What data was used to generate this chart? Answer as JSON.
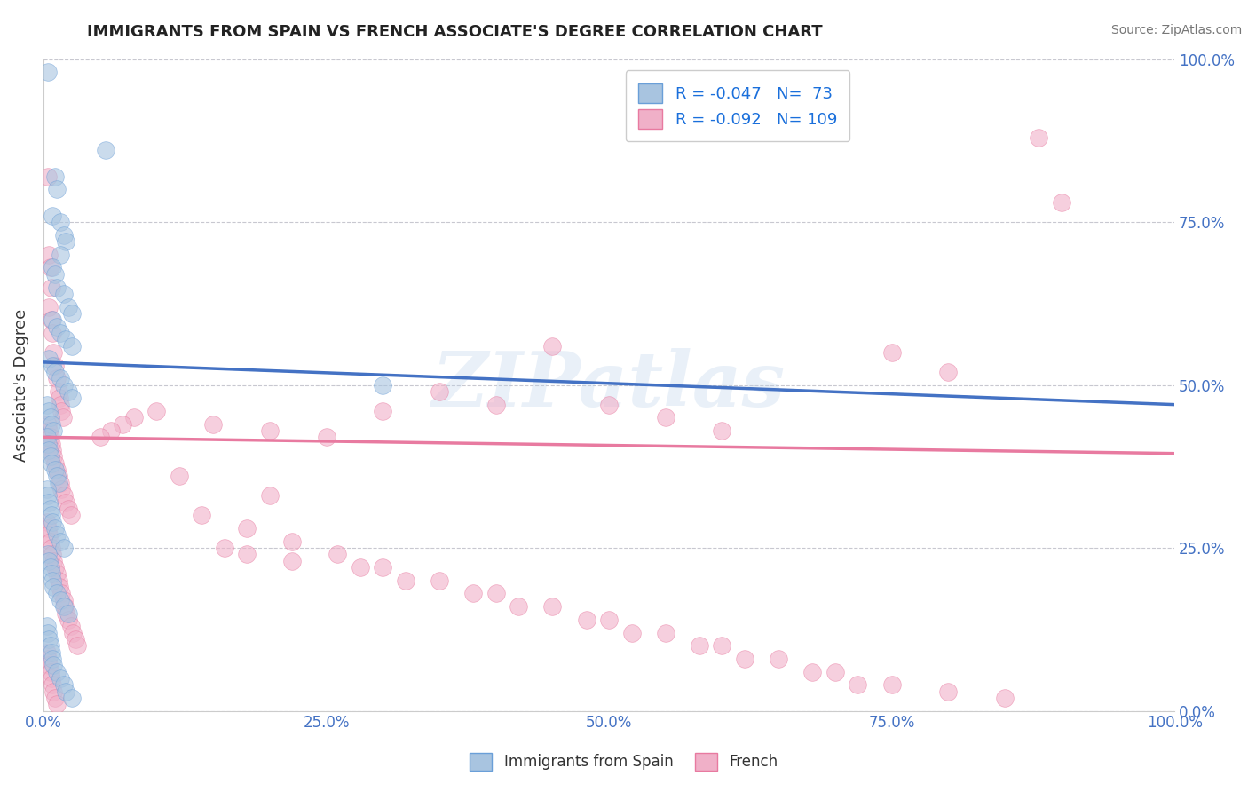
{
  "title": "IMMIGRANTS FROM SPAIN VS FRENCH ASSOCIATE'S DEGREE CORRELATION CHART",
  "source": "Source: ZipAtlas.com",
  "ylabel": "Associate's Degree",
  "watermark": "ZIPatlas",
  "blue_label": "Immigrants from Spain",
  "pink_label": "French",
  "blue_R": -0.047,
  "blue_N": 73,
  "pink_R": -0.092,
  "pink_N": 109,
  "xlim": [
    0.0,
    1.0
  ],
  "ylim": [
    0.0,
    1.0
  ],
  "xticks": [
    0.0,
    0.25,
    0.5,
    0.75,
    1.0
  ],
  "yticks": [
    0.0,
    0.25,
    0.5,
    0.75,
    1.0
  ],
  "xticklabels": [
    "0.0%",
    "25.0%",
    "50.0%",
    "75.0%",
    "100.0%"
  ],
  "yticklabels": [
    "0.0%",
    "25.0%",
    "50.0%",
    "75.0%",
    "100.0%"
  ],
  "blue_color": "#a8c4e0",
  "pink_color": "#f0b0c8",
  "blue_edge_color": "#6a9fd8",
  "pink_edge_color": "#e87aa0",
  "blue_line_color": "#4472c4",
  "pink_line_color": "#e87aa0",
  "blue_scatter_x": [
    0.004,
    0.055,
    0.01,
    0.012,
    0.008,
    0.015,
    0.018,
    0.02,
    0.015,
    0.008,
    0.01,
    0.012,
    0.018,
    0.022,
    0.025,
    0.008,
    0.012,
    0.015,
    0.02,
    0.025,
    0.005,
    0.008,
    0.01,
    0.015,
    0.018,
    0.022,
    0.025,
    0.003,
    0.005,
    0.006,
    0.007,
    0.009,
    0.003,
    0.004,
    0.005,
    0.006,
    0.007,
    0.01,
    0.012,
    0.013,
    0.003,
    0.004,
    0.005,
    0.006,
    0.007,
    0.008,
    0.01,
    0.012,
    0.015,
    0.018,
    0.004,
    0.005,
    0.006,
    0.007,
    0.008,
    0.009,
    0.012,
    0.015,
    0.018,
    0.022,
    0.003,
    0.004,
    0.005,
    0.006,
    0.007,
    0.008,
    0.009,
    0.012,
    0.015,
    0.018,
    0.02,
    0.025,
    0.3
  ],
  "blue_scatter_y": [
    0.98,
    0.86,
    0.82,
    0.8,
    0.76,
    0.75,
    0.73,
    0.72,
    0.7,
    0.68,
    0.67,
    0.65,
    0.64,
    0.62,
    0.61,
    0.6,
    0.59,
    0.58,
    0.57,
    0.56,
    0.54,
    0.53,
    0.52,
    0.51,
    0.5,
    0.49,
    0.48,
    0.47,
    0.46,
    0.45,
    0.44,
    0.43,
    0.42,
    0.41,
    0.4,
    0.39,
    0.38,
    0.37,
    0.36,
    0.35,
    0.34,
    0.33,
    0.32,
    0.31,
    0.3,
    0.29,
    0.28,
    0.27,
    0.26,
    0.25,
    0.24,
    0.23,
    0.22,
    0.21,
    0.2,
    0.19,
    0.18,
    0.17,
    0.16,
    0.15,
    0.13,
    0.12,
    0.11,
    0.1,
    0.09,
    0.08,
    0.07,
    0.06,
    0.05,
    0.04,
    0.03,
    0.02,
    0.5
  ],
  "pink_scatter_x": [
    0.004,
    0.005,
    0.006,
    0.007,
    0.005,
    0.007,
    0.008,
    0.009,
    0.01,
    0.012,
    0.013,
    0.014,
    0.015,
    0.016,
    0.017,
    0.004,
    0.005,
    0.006,
    0.007,
    0.008,
    0.009,
    0.01,
    0.012,
    0.013,
    0.015,
    0.016,
    0.018,
    0.02,
    0.022,
    0.024,
    0.003,
    0.004,
    0.005,
    0.006,
    0.007,
    0.008,
    0.009,
    0.01,
    0.012,
    0.013,
    0.014,
    0.016,
    0.018,
    0.019,
    0.02,
    0.022,
    0.024,
    0.026,
    0.028,
    0.03,
    0.003,
    0.004,
    0.005,
    0.006,
    0.007,
    0.008,
    0.009,
    0.01,
    0.012,
    0.45,
    0.5,
    0.55,
    0.6,
    0.35,
    0.2,
    0.15,
    0.1,
    0.08,
    0.07,
    0.06,
    0.05,
    0.75,
    0.8,
    0.3,
    0.4,
    0.25,
    0.2,
    0.18,
    0.22,
    0.28,
    0.32,
    0.38,
    0.42,
    0.48,
    0.52,
    0.58,
    0.62,
    0.68,
    0.72,
    0.12,
    0.16,
    0.14,
    0.18,
    0.22,
    0.26,
    0.3,
    0.35,
    0.4,
    0.45,
    0.5,
    0.55,
    0.6,
    0.65,
    0.7,
    0.75,
    0.8,
    0.85,
    0.88,
    0.9
  ],
  "pink_scatter_y": [
    0.82,
    0.7,
    0.68,
    0.65,
    0.62,
    0.6,
    0.58,
    0.55,
    0.53,
    0.51,
    0.49,
    0.48,
    0.47,
    0.46,
    0.45,
    0.44,
    0.43,
    0.42,
    0.41,
    0.4,
    0.39,
    0.38,
    0.37,
    0.36,
    0.35,
    0.34,
    0.33,
    0.32,
    0.31,
    0.3,
    0.29,
    0.28,
    0.27,
    0.26,
    0.25,
    0.24,
    0.23,
    0.22,
    0.21,
    0.2,
    0.19,
    0.18,
    0.17,
    0.16,
    0.15,
    0.14,
    0.13,
    0.12,
    0.11,
    0.1,
    0.09,
    0.08,
    0.07,
    0.06,
    0.05,
    0.04,
    0.03,
    0.02,
    0.01,
    0.56,
    0.47,
    0.45,
    0.43,
    0.49,
    0.43,
    0.44,
    0.46,
    0.45,
    0.44,
    0.43,
    0.42,
    0.55,
    0.52,
    0.46,
    0.47,
    0.42,
    0.33,
    0.24,
    0.23,
    0.22,
    0.2,
    0.18,
    0.16,
    0.14,
    0.12,
    0.1,
    0.08,
    0.06,
    0.04,
    0.36,
    0.25,
    0.3,
    0.28,
    0.26,
    0.24,
    0.22,
    0.2,
    0.18,
    0.16,
    0.14,
    0.12,
    0.1,
    0.08,
    0.06,
    0.04,
    0.03,
    0.02,
    0.88,
    0.78
  ],
  "blue_line_x0": 0.0,
  "blue_line_x1": 1.0,
  "blue_line_y0": 0.535,
  "blue_line_y1": 0.47,
  "pink_line_x0": 0.0,
  "pink_line_x1": 1.0,
  "pink_line_y0": 0.42,
  "pink_line_y1": 0.395,
  "title_color": "#222222",
  "source_color": "#777777",
  "axis_label_color": "#333333",
  "tick_color": "#4472c4",
  "legend_R_color": "#1a6fdb",
  "grid_color": "#c8c8d0",
  "background_color": "#ffffff"
}
